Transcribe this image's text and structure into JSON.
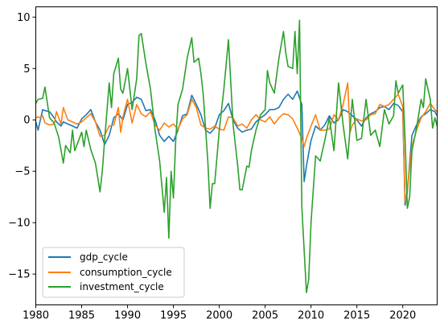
{
  "chart_data": {
    "type": "line",
    "title": "",
    "xlabel": "",
    "ylabel": "",
    "xlim": [
      1980,
      2023.75
    ],
    "ylim": [
      -18,
      11
    ],
    "xticks": [
      1980,
      1985,
      1990,
      1995,
      2000,
      2005,
      2010,
      2015,
      2020
    ],
    "xtick_labels": [
      "1980",
      "1985",
      "1990",
      "1995",
      "2000",
      "2005",
      "2010",
      "2015",
      "2020"
    ],
    "yticks": [
      10,
      5,
      0,
      -5,
      -10,
      -15
    ],
    "ytick_labels": [
      "10",
      "5",
      "0",
      "−5",
      "−10",
      "−15"
    ],
    "legend_position": "lower-left",
    "grid": false,
    "series": [
      {
        "name": "gdp_cycle",
        "color": "#1f77b4",
        "points": [
          [
            1980,
            -0.2
          ],
          [
            1980.25,
            -1.0
          ],
          [
            1980.5,
            0.0
          ],
          [
            1980.75,
            1.0
          ],
          [
            1981,
            0.9
          ],
          [
            1981.5,
            0.8
          ],
          [
            1982,
            0.2
          ],
          [
            1982.25,
            -0.2
          ],
          [
            1982.75,
            -0.6
          ],
          [
            1983,
            -0.2
          ],
          [
            1983.5,
            -0.4
          ],
          [
            1984,
            -0.6
          ],
          [
            1984.5,
            -0.8
          ],
          [
            1985,
            0.1
          ],
          [
            1985.5,
            0.5
          ],
          [
            1986,
            1.0
          ],
          [
            1986.5,
            -0.2
          ],
          [
            1987,
            -1.0
          ],
          [
            1987.5,
            -2.4
          ],
          [
            1988,
            -1.5
          ],
          [
            1988.5,
            0.2
          ],
          [
            1989,
            0.6
          ],
          [
            1989.5,
            0.0
          ],
          [
            1990,
            1.5
          ],
          [
            1990.5,
            1.7
          ],
          [
            1991,
            2.2
          ],
          [
            1991.5,
            2.0
          ],
          [
            1992,
            0.9
          ],
          [
            1992.5,
            1.0
          ],
          [
            1993,
            0.0
          ],
          [
            1993.5,
            -1.5
          ],
          [
            1994,
            -2.1
          ],
          [
            1994.5,
            -1.6
          ],
          [
            1995,
            -2.1
          ],
          [
            1995.5,
            -1.0
          ],
          [
            1996,
            0.4
          ],
          [
            1996.5,
            0.6
          ],
          [
            1997,
            2.4
          ],
          [
            1997.5,
            1.5
          ],
          [
            1998,
            0.5
          ],
          [
            1998.5,
            -1.0
          ],
          [
            1999,
            -1.3
          ],
          [
            1999.5,
            -0.8
          ],
          [
            2000,
            0.5
          ],
          [
            2000.5,
            0.9
          ],
          [
            2001,
            1.6
          ],
          [
            2001.5,
            0.0
          ],
          [
            2002,
            -0.8
          ],
          [
            2002.5,
            -1.2
          ],
          [
            2003,
            -1.0
          ],
          [
            2003.5,
            -0.9
          ],
          [
            2004,
            -0.2
          ],
          [
            2004.5,
            0.2
          ],
          [
            2005,
            0.5
          ],
          [
            2005.5,
            1.0
          ],
          [
            2006,
            1.0
          ],
          [
            2006.5,
            1.2
          ],
          [
            2007,
            2.0
          ],
          [
            2007.5,
            2.5
          ],
          [
            2008,
            2.0
          ],
          [
            2008.5,
            2.8
          ],
          [
            2009,
            1.5
          ],
          [
            2009.25,
            -6.0
          ],
          [
            2009.5,
            -4.5
          ],
          [
            2010,
            -2.0
          ],
          [
            2010.5,
            -0.6
          ],
          [
            2011,
            -1.0
          ],
          [
            2011.5,
            -0.5
          ],
          [
            2012,
            0.4
          ],
          [
            2012.5,
            -0.3
          ],
          [
            2013,
            0.0
          ],
          [
            2013.5,
            1.0
          ],
          [
            2014,
            0.8
          ],
          [
            2014.5,
            0.4
          ],
          [
            2015,
            0.0
          ],
          [
            2015.5,
            -0.6
          ],
          [
            2016,
            0.2
          ],
          [
            2016.5,
            0.6
          ],
          [
            2017,
            0.8
          ],
          [
            2017.5,
            1.2
          ],
          [
            2018,
            1.3
          ],
          [
            2018.5,
            1.0
          ],
          [
            2019,
            1.6
          ],
          [
            2019.5,
            1.4
          ],
          [
            2020,
            0.8
          ],
          [
            2020.25,
            -8.3
          ],
          [
            2020.5,
            -7.0
          ],
          [
            2021,
            -1.5
          ],
          [
            2021.5,
            -0.5
          ],
          [
            2022,
            0.3
          ],
          [
            2022.5,
            0.6
          ],
          [
            2023,
            1.0
          ],
          [
            2023.5,
            0.8
          ],
          [
            2023.75,
            0.4
          ]
        ]
      },
      {
        "name": "consumption_cycle",
        "color": "#ff7f0e",
        "points": [
          [
            1980,
            0.2
          ],
          [
            1980.25,
            0.3
          ],
          [
            1980.5,
            0.2
          ],
          [
            1980.75,
            0.4
          ],
          [
            1981,
            -0.3
          ],
          [
            1981.5,
            -0.5
          ],
          [
            1982,
            -0.4
          ],
          [
            1982.25,
            0.8
          ],
          [
            1982.75,
            -0.4
          ],
          [
            1983,
            1.2
          ],
          [
            1983.5,
            0.0
          ],
          [
            1984,
            -0.2
          ],
          [
            1984.5,
            -0.4
          ],
          [
            1985,
            -0.2
          ],
          [
            1985.5,
            0.2
          ],
          [
            1986,
            0.6
          ],
          [
            1986.5,
            -0.2
          ],
          [
            1987,
            -1.6
          ],
          [
            1987.5,
            -1.5
          ],
          [
            1988,
            -0.6
          ],
          [
            1988.5,
            -0.5
          ],
          [
            1989,
            1.2
          ],
          [
            1989.25,
            -1.2
          ],
          [
            1989.5,
            0.3
          ],
          [
            1990,
            2.0
          ],
          [
            1990.5,
            -0.3
          ],
          [
            1991,
            1.5
          ],
          [
            1991.5,
            0.6
          ],
          [
            1992,
            0.3
          ],
          [
            1992.5,
            0.8
          ],
          [
            1993,
            -0.5
          ],
          [
            1993.5,
            -1.0
          ],
          [
            1994,
            -0.3
          ],
          [
            1994.5,
            -0.7
          ],
          [
            1995,
            -0.4
          ],
          [
            1995.5,
            -0.9
          ],
          [
            1996,
            0.1
          ],
          [
            1996.5,
            0.5
          ],
          [
            1997,
            2.0
          ],
          [
            1997.5,
            1.2
          ],
          [
            1998,
            -0.5
          ],
          [
            1998.5,
            -0.8
          ],
          [
            1999,
            -0.9
          ],
          [
            1999.5,
            -0.6
          ],
          [
            2000,
            -0.9
          ],
          [
            2000.5,
            -1.0
          ],
          [
            2001,
            0.3
          ],
          [
            2001.5,
            0.2
          ],
          [
            2002,
            -0.6
          ],
          [
            2002.5,
            -0.4
          ],
          [
            2003,
            -0.8
          ],
          [
            2003.5,
            0.0
          ],
          [
            2004,
            0.5
          ],
          [
            2004.5,
            0.0
          ],
          [
            2005,
            -0.2
          ],
          [
            2005.5,
            0.3
          ],
          [
            2006,
            -0.4
          ],
          [
            2006.5,
            0.2
          ],
          [
            2007,
            0.6
          ],
          [
            2007.5,
            0.5
          ],
          [
            2008,
            0.1
          ],
          [
            2008.5,
            -0.8
          ],
          [
            2009,
            -1.8
          ],
          [
            2009.25,
            -2.6
          ],
          [
            2009.5,
            -1.8
          ],
          [
            2010,
            -0.6
          ],
          [
            2010.5,
            0.5
          ],
          [
            2011,
            -1.0
          ],
          [
            2011.5,
            -1.0
          ],
          [
            2012,
            -0.9
          ],
          [
            2012.5,
            0.5
          ],
          [
            2013,
            0.0
          ],
          [
            2013.5,
            1.5
          ],
          [
            2014,
            3.6
          ],
          [
            2014.25,
            -1.2
          ],
          [
            2014.5,
            -0.5
          ],
          [
            2015,
            0.1
          ],
          [
            2015.5,
            -0.1
          ],
          [
            2016,
            0.0
          ],
          [
            2016.5,
            0.5
          ],
          [
            2017,
            0.6
          ],
          [
            2017.5,
            1.5
          ],
          [
            2018,
            1.3
          ],
          [
            2018.5,
            1.5
          ],
          [
            2019,
            2.0
          ],
          [
            2019.5,
            2.5
          ],
          [
            2020,
            1.3
          ],
          [
            2020.25,
            -8.0
          ],
          [
            2020.5,
            -6.8
          ],
          [
            2021,
            -2.6
          ],
          [
            2021.5,
            -1.0
          ],
          [
            2022,
            0.2
          ],
          [
            2022.5,
            0.8
          ],
          [
            2023,
            1.6
          ],
          [
            2023.5,
            1.0
          ],
          [
            2023.75,
            0.8
          ]
        ]
      },
      {
        "name": "investment_cycle",
        "color": "#2ca02c",
        "points": [
          [
            1980,
            1.6
          ],
          [
            1980.25,
            2.0
          ],
          [
            1980.75,
            2.1
          ],
          [
            1981,
            3.2
          ],
          [
            1981.5,
            0.2
          ],
          [
            1982,
            -0.3
          ],
          [
            1982.5,
            -1.7
          ],
          [
            1983,
            -4.2
          ],
          [
            1983.25,
            -2.5
          ],
          [
            1983.75,
            -3.2
          ],
          [
            1984,
            -1.0
          ],
          [
            1984.25,
            -3.0
          ],
          [
            1984.5,
            -2.4
          ],
          [
            1985,
            -1.2
          ],
          [
            1985.25,
            -2.6
          ],
          [
            1985.5,
            -1.0
          ],
          [
            1986,
            -2.9
          ],
          [
            1986.5,
            -4.2
          ],
          [
            1987,
            -7.0
          ],
          [
            1987.25,
            -5.0
          ],
          [
            1987.5,
            -2.0
          ],
          [
            1988,
            3.6
          ],
          [
            1988.25,
            1.2
          ],
          [
            1988.5,
            4.5
          ],
          [
            1989,
            6.0
          ],
          [
            1989.25,
            3.0
          ],
          [
            1989.5,
            2.6
          ],
          [
            1990,
            5.0
          ],
          [
            1990.5,
            1.0
          ],
          [
            1991,
            4.0
          ],
          [
            1991.25,
            8.2
          ],
          [
            1991.5,
            8.4
          ],
          [
            1992,
            5.5
          ],
          [
            1992.5,
            3.0
          ],
          [
            1993,
            -1.0
          ],
          [
            1993.5,
            -4.0
          ],
          [
            1994,
            -9.0
          ],
          [
            1994.25,
            -5.6
          ],
          [
            1994.5,
            -11.5
          ],
          [
            1994.75,
            -5.0
          ],
          [
            1995,
            -7.6
          ],
          [
            1995.25,
            -2.0
          ],
          [
            1995.5,
            1.5
          ],
          [
            1996,
            3.0
          ],
          [
            1996.5,
            6.0
          ],
          [
            1997,
            8.0
          ],
          [
            1997.25,
            5.6
          ],
          [
            1997.75,
            6.0
          ],
          [
            1998,
            4.5
          ],
          [
            1998.25,
            2.5
          ],
          [
            1998.75,
            -4.0
          ],
          [
            1999,
            -8.6
          ],
          [
            1999.25,
            -6.2
          ],
          [
            1999.5,
            -6.2
          ],
          [
            2000,
            -1.0
          ],
          [
            2000.5,
            3.0
          ],
          [
            2001,
            7.8
          ],
          [
            2001.5,
            -0.4
          ],
          [
            2002,
            -4.4
          ],
          [
            2002.25,
            -6.8
          ],
          [
            2002.5,
            -6.8
          ],
          [
            2003,
            -4.5
          ],
          [
            2003.25,
            -4.6
          ],
          [
            2003.5,
            -3.0
          ],
          [
            2004,
            -1.0
          ],
          [
            2004.5,
            0.5
          ],
          [
            2005,
            1.0
          ],
          [
            2005.25,
            4.8
          ],
          [
            2005.5,
            3.6
          ],
          [
            2006,
            2.6
          ],
          [
            2006.5,
            6.0
          ],
          [
            2007,
            8.6
          ],
          [
            2007.25,
            6.5
          ],
          [
            2007.5,
            5.2
          ],
          [
            2008,
            5.0
          ],
          [
            2008.25,
            8.6
          ],
          [
            2008.5,
            4.5
          ],
          [
            2008.75,
            9.7
          ],
          [
            2009,
            -8.5
          ],
          [
            2009.5,
            -16.8
          ],
          [
            2009.75,
            -15.5
          ],
          [
            2010,
            -10.0
          ],
          [
            2010.5,
            -3.5
          ],
          [
            2011,
            -4.0
          ],
          [
            2011.5,
            -2.0
          ],
          [
            2012,
            0.2
          ],
          [
            2012.5,
            -3.0
          ],
          [
            2013,
            3.6
          ],
          [
            2013.5,
            -0.5
          ],
          [
            2014,
            -3.8
          ],
          [
            2014.5,
            2.0
          ],
          [
            2015,
            -2.0
          ],
          [
            2015.5,
            -1.8
          ],
          [
            2016,
            2.0
          ],
          [
            2016.5,
            -1.5
          ],
          [
            2017,
            -1.0
          ],
          [
            2017.5,
            -2.6
          ],
          [
            2018,
            1.0
          ],
          [
            2018.5,
            -0.4
          ],
          [
            2019,
            0.4
          ],
          [
            2019.25,
            3.8
          ],
          [
            2019.5,
            2.6
          ],
          [
            2020,
            3.4
          ],
          [
            2020.25,
            -1.8
          ],
          [
            2020.5,
            -8.6
          ],
          [
            2020.75,
            -7.5
          ],
          [
            2021,
            -3.0
          ],
          [
            2021.5,
            -0.8
          ],
          [
            2022,
            2.0
          ],
          [
            2022.25,
            1.2
          ],
          [
            2022.5,
            4.0
          ],
          [
            2023,
            2.0
          ],
          [
            2023.25,
            -0.8
          ],
          [
            2023.5,
            0.2
          ],
          [
            2023.75,
            -0.6
          ]
        ]
      }
    ]
  }
}
